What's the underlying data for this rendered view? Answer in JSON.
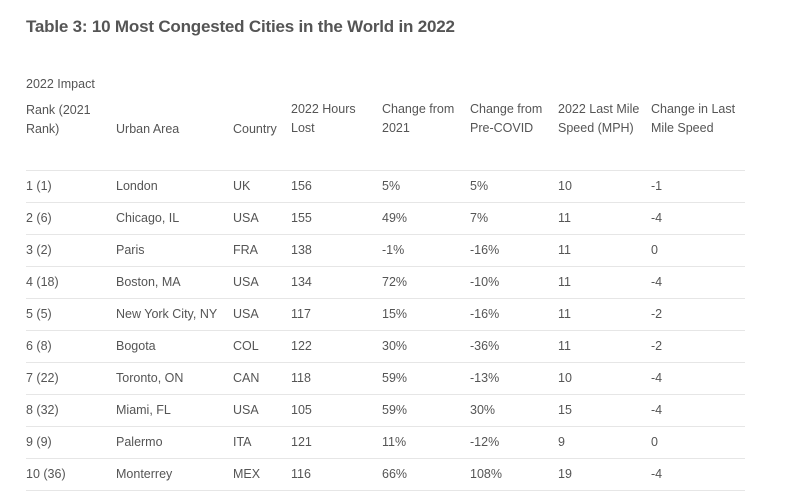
{
  "title": "Table 3: 10 Most Congested Cities in the World in 2022",
  "impact_label": "2022 Impact",
  "headers": {
    "rank_line1": "Rank (2021",
    "rank_line2": "Rank)",
    "urban_area": "Urban Area",
    "country": "Country",
    "hours_line1": "2022 Hours",
    "hours_line2": "Lost",
    "change2021_line1": "Change from",
    "change2021_line2": "2021",
    "changepre_line1": "Change from",
    "changepre_line2": "Pre-COVID",
    "speed_line1": "2022 Last Mile",
    "speed_line2": "Speed (MPH)",
    "changespeed_line1": "Change in Last",
    "changespeed_line2": "Mile Speed"
  },
  "rows": [
    {
      "rank": "1 (1)",
      "city": "London",
      "country": "UK",
      "hours": "156",
      "change_2021": "5%",
      "change_pre_covid": "5%",
      "speed": "10",
      "speed_change": "-1"
    },
    {
      "rank": "2 (6)",
      "city": "Chicago, IL",
      "country": "USA",
      "hours": "155",
      "change_2021": "49%",
      "change_pre_covid": "7%",
      "speed": "11",
      "speed_change": "-4"
    },
    {
      "rank": "3 (2)",
      "city": "Paris",
      "country": "FRA",
      "hours": "138",
      "change_2021": "-1%",
      "change_pre_covid": "-16%",
      "speed": "11",
      "speed_change": "0"
    },
    {
      "rank": "4 (18)",
      "city": "Boston, MA",
      "country": "USA",
      "hours": "134",
      "change_2021": "72%",
      "change_pre_covid": "-10%",
      "speed": "11",
      "speed_change": "-4"
    },
    {
      "rank": "5 (5)",
      "city": "New York City, NY",
      "country": "USA",
      "hours": "117",
      "change_2021": "15%",
      "change_pre_covid": "-16%",
      "speed": "11",
      "speed_change": "-2"
    },
    {
      "rank": "6 (8)",
      "city": "Bogota",
      "country": "COL",
      "hours": "122",
      "change_2021": "30%",
      "change_pre_covid": "-36%",
      "speed": "11",
      "speed_change": "-2"
    },
    {
      "rank": "7 (22)",
      "city": "Toronto, ON",
      "country": "CAN",
      "hours": "118",
      "change_2021": "59%",
      "change_pre_covid": "-13%",
      "speed": "10",
      "speed_change": "-4"
    },
    {
      "rank": "8 (32)",
      "city": "Miami, FL",
      "country": "USA",
      "hours": "105",
      "change_2021": "59%",
      "change_pre_covid": "30%",
      "speed": "15",
      "speed_change": "-4"
    },
    {
      "rank": "9 (9)",
      "city": "Palermo",
      "country": "ITA",
      "hours": "121",
      "change_2021": "11%",
      "change_pre_covid": "-12%",
      "speed": "9",
      "speed_change": "0"
    },
    {
      "rank": "10 (36)",
      "city": "Monterrey",
      "country": "MEX",
      "hours": "116",
      "change_2021": "66%",
      "change_pre_covid": "108%",
      "speed": "19",
      "speed_change": "-4"
    }
  ]
}
